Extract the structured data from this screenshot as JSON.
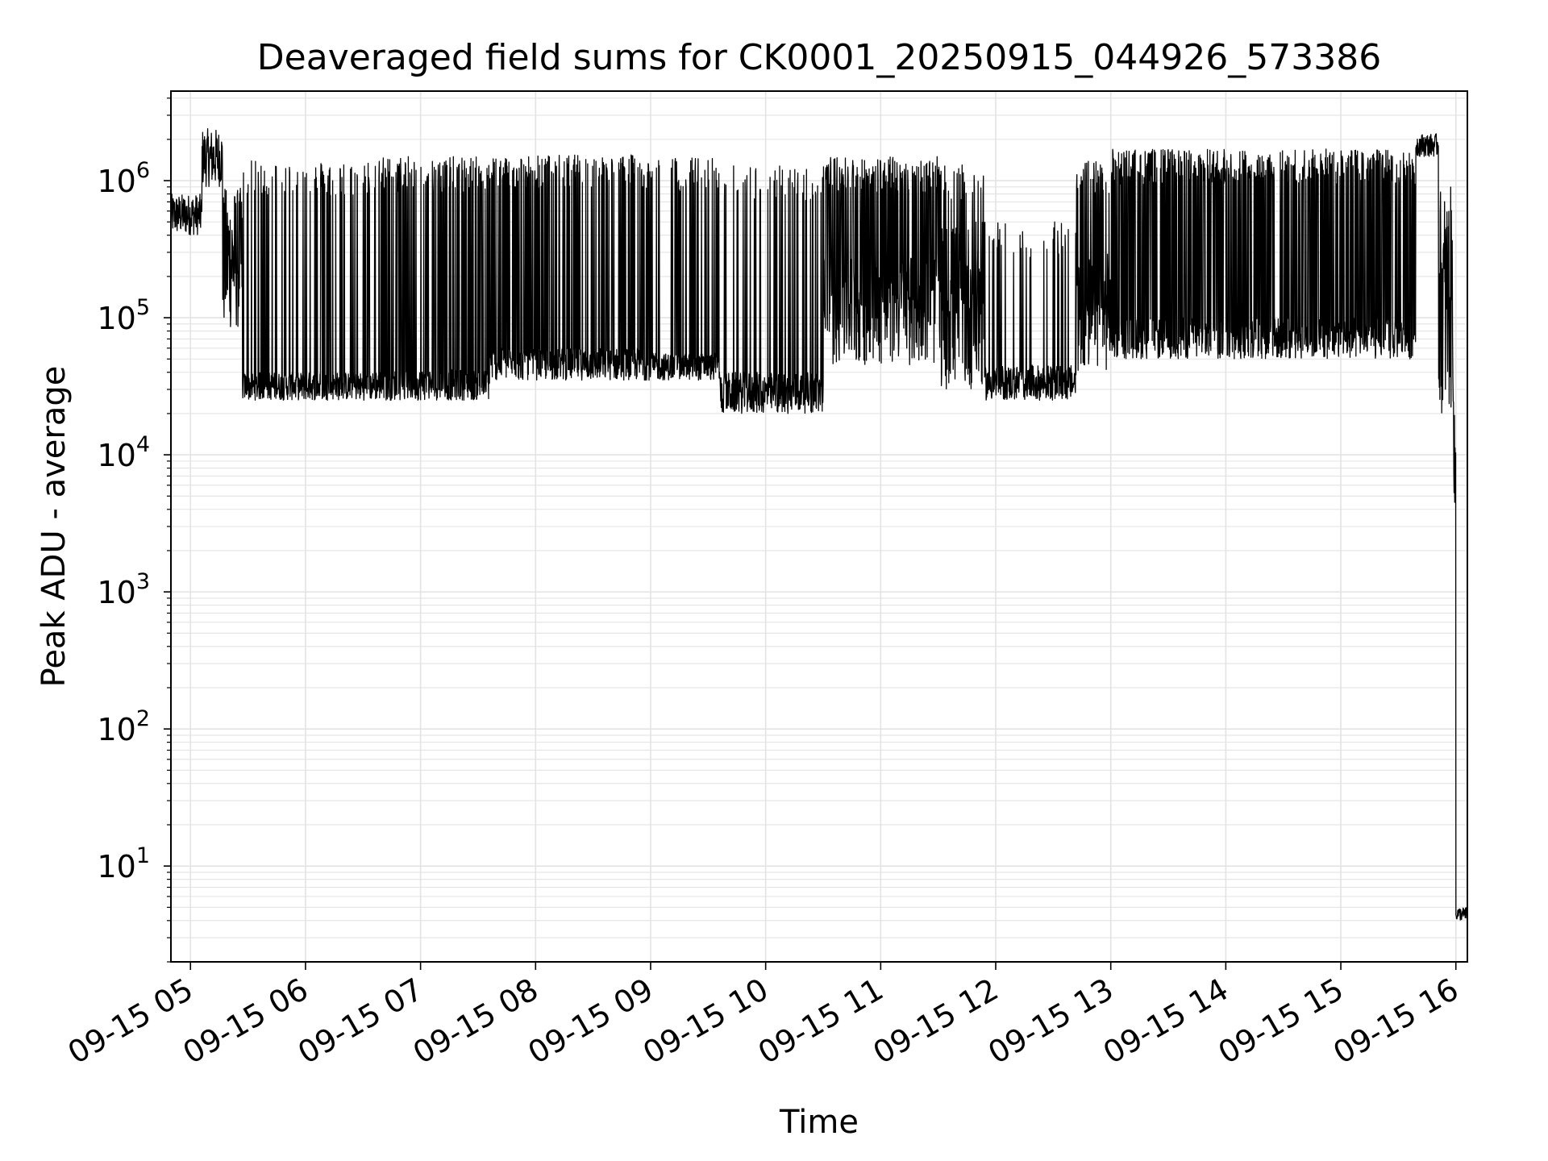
{
  "chart_data": {
    "type": "line",
    "title": "Deaveraged field sums for CK0001_20250915_044926_573386",
    "xlabel": "Time",
    "ylabel": "Peak ADU - average",
    "yscale": "log",
    "ylim": [
      2,
      4500000
    ],
    "xlim_hours": [
      4.83,
      16.1
    ],
    "grid": true,
    "line_color": "#000000",
    "grid_color": "#e3e3e3",
    "x_ticks": [
      {
        "hour": 5,
        "label": "09-15 05"
      },
      {
        "hour": 6,
        "label": "09-15 06"
      },
      {
        "hour": 7,
        "label": "09-15 07"
      },
      {
        "hour": 8,
        "label": "09-15 08"
      },
      {
        "hour": 9,
        "label": "09-15 09"
      },
      {
        "hour": 10,
        "label": "09-15 10"
      },
      {
        "hour": 11,
        "label": "09-15 11"
      },
      {
        "hour": 12,
        "label": "09-15 12"
      },
      {
        "hour": 13,
        "label": "09-15 13"
      },
      {
        "hour": 14,
        "label": "09-15 14"
      },
      {
        "hour": 15,
        "label": "09-15 15"
      },
      {
        "hour": 16,
        "label": "09-15 16"
      }
    ],
    "y_ticks": [
      {
        "exp": 1,
        "label": "10",
        "sup": "1"
      },
      {
        "exp": 2,
        "label": "10",
        "sup": "2"
      },
      {
        "exp": 3,
        "label": "10",
        "sup": "3"
      },
      {
        "exp": 4,
        "label": "10",
        "sup": "4"
      },
      {
        "exp": 5,
        "label": "10",
        "sup": "5"
      },
      {
        "exp": 6,
        "label": "10",
        "sup": "6"
      }
    ],
    "series": [
      {
        "name": "deaveraged field sum",
        "segments": [
          {
            "from": 4.83,
            "to": 5.1,
            "low": 400000,
            "high": 800000,
            "spike_prob": 0.0
          },
          {
            "from": 5.1,
            "to": 5.28,
            "low": 900000,
            "high": 2400000,
            "spike_prob": 0.0
          },
          {
            "from": 5.28,
            "to": 5.45,
            "low": 80000,
            "high": 900000,
            "spike_prob": 0.0
          },
          {
            "from": 5.45,
            "to": 6.6,
            "low": 25000,
            "high": 40000,
            "spike_prob": 0.35,
            "spike_high": 1400000
          },
          {
            "from": 6.6,
            "to": 7.6,
            "low": 25000,
            "high": 42000,
            "spike_prob": 0.6,
            "spike_high": 1500000
          },
          {
            "from": 7.6,
            "to": 9.0,
            "low": 35000,
            "high": 60000,
            "spike_prob": 0.6,
            "spike_high": 1550000
          },
          {
            "from": 9.0,
            "to": 9.6,
            "low": 35000,
            "high": 55000,
            "spike_prob": 0.35,
            "spike_high": 1500000
          },
          {
            "from": 9.6,
            "to": 10.5,
            "low": 20000,
            "high": 40000,
            "spike_prob": 0.25,
            "spike_high": 1300000
          },
          {
            "from": 10.5,
            "to": 11.5,
            "low": 45000,
            "high": 300000,
            "spike_prob": 0.7,
            "spike_high": 1500000
          },
          {
            "from": 11.5,
            "to": 11.9,
            "low": 30000,
            "high": 500000,
            "spike_prob": 0.4,
            "spike_high": 1300000
          },
          {
            "from": 11.9,
            "to": 12.7,
            "low": 25000,
            "high": 45000,
            "spike_prob": 0.15,
            "spike_high": 500000
          },
          {
            "from": 12.7,
            "to": 13.0,
            "low": 40000,
            "high": 300000,
            "spike_prob": 0.6,
            "spike_high": 1400000
          },
          {
            "from": 13.0,
            "to": 15.65,
            "low": 50000,
            "high": 100000,
            "spike_prob": 0.8,
            "spike_high": 1700000
          },
          {
            "from": 15.65,
            "to": 15.85,
            "low": 1500000,
            "high": 2200000,
            "spike_prob": 0.0
          },
          {
            "from": 15.85,
            "to": 15.98,
            "low": 20000,
            "high": 900000,
            "spike_prob": 0.0
          },
          {
            "from": 15.98,
            "to": 16.0,
            "low": 3000,
            "high": 20000,
            "spike_prob": 0.0
          },
          {
            "from": 16.0,
            "to": 16.1,
            "low": 4,
            "high": 5,
            "spike_prob": 0.0
          }
        ]
      }
    ]
  }
}
